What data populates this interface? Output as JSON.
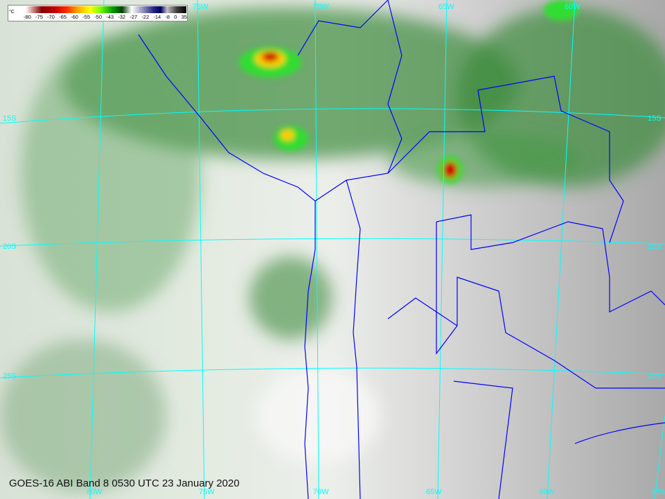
{
  "caption": "GOES-16 ABI Band 8 0530 UTC 23 January 2020",
  "colorbar": {
    "unit": "°C",
    "ticks": [
      "-80",
      "-75",
      "-70",
      "-65",
      "-60",
      "-55",
      "-50",
      "-43",
      "-32",
      "-27",
      "-22",
      "-14",
      "-8",
      "0",
      "35"
    ]
  },
  "grid_labels": {
    "top": [
      "75W",
      "70W",
      "65W",
      "60W"
    ],
    "left": [
      "15S",
      "20S",
      "25S"
    ],
    "right": [
      "15S",
      "20S",
      "25S"
    ],
    "bottom": [
      "80W",
      "75W",
      "70W",
      "65W",
      "60W",
      "55W"
    ]
  },
  "colors": {
    "grid": "#00ffff",
    "borders": "#0000ff",
    "cold_cloud": "#ff0000",
    "cloud": "#1f7a1f"
  }
}
